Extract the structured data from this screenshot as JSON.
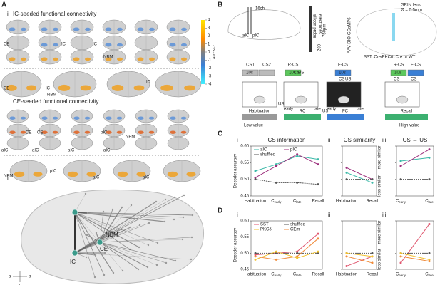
{
  "panel_a": {
    "label": "A",
    "sub_i": "i",
    "title_ic": "IC-seeded functional connectivity",
    "title_ce": "CE-seeded functional connectivity",
    "sub_ii": "ii",
    "region_labels": [
      "CE",
      "IC",
      "IC",
      "NBM",
      "CE",
      "IC",
      "NBM",
      "IC",
      "CE",
      "CE",
      "pIC",
      "NBM",
      "aIC",
      "aIC",
      "aIC",
      "aIC",
      "pIC",
      "NBM",
      "aIC",
      "aIC"
    ],
    "network_labels": [
      "NBM",
      "CE",
      "IC"
    ],
    "compass": [
      "a",
      "p",
      "r",
      "l"
    ],
    "colorbar": {
      "label": "z-score",
      "lim": [
        -4,
        4
      ],
      "ticks": [
        4,
        3,
        2,
        1,
        0,
        -1,
        -2,
        -3,
        -4
      ]
    }
  },
  "panel_b": {
    "label": "B",
    "probe": [
      "16ch",
      "pIC",
      "aIC",
      "silicon probe",
      "electrodes",
      "750μm",
      "200"
    ],
    "lens": [
      "GRIN lens",
      "Ø = 0.5mm",
      "AAV-DIO-GCaMP6",
      "SST::Cre/PKCδ::Cre or WT"
    ],
    "cues": [
      "CS1",
      "CS2",
      "10s",
      "R-CS",
      "10s",
      "F-CS",
      "10s",
      "R-CS",
      "F-CS",
      "10s"
    ],
    "boxes": [
      "CS",
      "US",
      "CS",
      "US",
      "CS",
      "CS"
    ],
    "us": [
      "US",
      "US"
    ],
    "stages": [
      "Habituation",
      "RC",
      "FC",
      "Recall"
    ],
    "phases": [
      "early",
      "late",
      "early",
      "late"
    ],
    "value": [
      "Low value",
      "High value"
    ]
  },
  "panel_c": {
    "label": "C"
  },
  "panel_d": {
    "label": "D"
  },
  "chart_data": [
    {
      "type": "line",
      "label": "i",
      "title": "CS information",
      "y_label": "Decoder accuracy",
      "legend": true,
      "categories": [
        "Habituation",
        "C",
        "C",
        "Recall"
      ],
      "category_subs": [
        null,
        "early",
        "late",
        null
      ],
      "ylim": [
        0.45,
        0.6
      ],
      "yticks": [
        0.45,
        {
          "value": 0.5,
          "label": "0.50"
        },
        0.55,
        {
          "value": 0.6,
          "label": "0.60"
        }
      ],
      "series": [
        {
          "name": "aIC",
          "color": "#3cb9a8",
          "values": [
            0.525,
            0.545,
            0.57,
            0.56
          ]
        },
        {
          "name": "pIC",
          "color": "#9c2f7c",
          "values": [
            0.505,
            0.54,
            0.575,
            0.545
          ]
        },
        {
          "name": "shuffled",
          "color": "#555555",
          "dash": true,
          "values": [
            0.5,
            0.49,
            0.49,
            0.485
          ]
        }
      ]
    },
    {
      "type": "line",
      "label": "ii",
      "title": "CS similarity",
      "annotations": [
        "more similar",
        "less similar"
      ],
      "categories": [
        "Habituation",
        "Recall"
      ],
      "category_subs": [
        null,
        null
      ],
      "ylim": [
        0.45,
        0.6
      ],
      "yticks": [
        0.45,
        {
          "value": 0.5,
          "label": "0.50"
        },
        0.55,
        {
          "value": 0.6,
          "label": "0.60"
        }
      ],
      "series": [
        {
          "name": "aIC",
          "color": "#3cb9a8",
          "values": [
            0.52,
            0.49
          ]
        },
        {
          "name": "pIC",
          "color": "#9c2f7c",
          "values": [
            0.535,
            0.5
          ]
        },
        {
          "name": "shuffled",
          "color": "#555555",
          "dash": true,
          "values": [
            0.5,
            0.5
          ]
        }
      ]
    },
    {
      "type": "line",
      "label": "iii",
      "title": "CS ← US",
      "categories": [
        "C",
        "C"
      ],
      "category_subs": [
        "early",
        "late"
      ],
      "ylim": [
        0.45,
        0.6
      ],
      "yticks": [
        0.45,
        {
          "value": 0.5,
          "label": "0.50"
        },
        0.55,
        {
          "value": 0.6,
          "label": "0.60"
        }
      ],
      "series": [
        {
          "name": "aIC",
          "color": "#3cb9a8",
          "values": [
            0.555,
            0.565
          ]
        },
        {
          "name": "pIC",
          "color": "#9c2f7c",
          "values": [
            0.54,
            0.59
          ]
        },
        {
          "name": "shuffled",
          "color": "#555555",
          "dash": true,
          "values": [
            0.5,
            0.5
          ]
        }
      ]
    },
    {
      "type": "line",
      "label": "i",
      "y_label": "Decoder accuracy",
      "legend": true,
      "categories": [
        "Habituation",
        "C",
        "C",
        "Recall"
      ],
      "category_subs": [
        null,
        "early",
        "late",
        null
      ],
      "ylim": [
        0.45,
        0.6
      ],
      "yticks": [
        0.45,
        {
          "value": 0.5,
          "label": "0.50"
        },
        0.55,
        {
          "value": 0.6,
          "label": "0.60"
        }
      ],
      "series": [
        {
          "name": "SST",
          "color": "#e0566e",
          "values": [
            0.495,
            0.5,
            0.505,
            0.56
          ]
        },
        {
          "name": "shuffled",
          "color": "#555555",
          "dash": true,
          "values": [
            0.5,
            0.5,
            0.5,
            0.5
          ]
        },
        {
          "name": "PKCδ",
          "color": "#f2c230",
          "values": [
            0.48,
            0.505,
            0.485,
            0.505
          ]
        },
        {
          "name": "CEm",
          "color": "#f08c3c",
          "values": [
            0.49,
            0.48,
            0.49,
            0.545
          ]
        }
      ]
    },
    {
      "type": "line",
      "label": "ii",
      "annotations": [
        "more similar",
        "less similar"
      ],
      "categories": [
        "Habituation",
        "Recall"
      ],
      "category_subs": [
        null,
        null
      ],
      "ylim": [
        0.45,
        0.6
      ],
      "yticks": [
        0.45,
        {
          "value": 0.5,
          "label": "0.50"
        },
        0.55,
        {
          "value": 0.6,
          "label": "0.60"
        }
      ],
      "series": [
        {
          "name": "SST",
          "color": "#e0566e",
          "values": [
            0.46,
            0.49
          ]
        },
        {
          "name": "shuffled",
          "color": "#555555",
          "dash": true,
          "values": [
            0.5,
            0.5
          ]
        },
        {
          "name": "PKCδ",
          "color": "#f2c230",
          "values": [
            0.5,
            0.49
          ]
        },
        {
          "name": "CEm",
          "color": "#f08c3c",
          "values": [
            0.49,
            0.47
          ]
        }
      ]
    },
    {
      "type": "line",
      "label": "iii",
      "categories": [
        "C",
        "C"
      ],
      "category_subs": [
        "early",
        "late"
      ],
      "ylim": [
        0.45,
        0.6
      ],
      "yticks": [
        0.45,
        {
          "value": 0.5,
          "label": "0.50"
        },
        0.55,
        {
          "value": 0.6,
          "label": "0.60"
        }
      ],
      "series": [
        {
          "name": "SST",
          "color": "#e0566e",
          "values": [
            0.47,
            0.59
          ]
        },
        {
          "name": "shuffled",
          "color": "#555555",
          "dash": true,
          "values": [
            0.5,
            0.5
          ]
        },
        {
          "name": "PKCδ",
          "color": "#f2c230",
          "values": [
            0.5,
            0.48
          ]
        },
        {
          "name": "CEm",
          "color": "#f08c3c",
          "values": [
            0.49,
            0.475
          ]
        }
      ]
    }
  ]
}
